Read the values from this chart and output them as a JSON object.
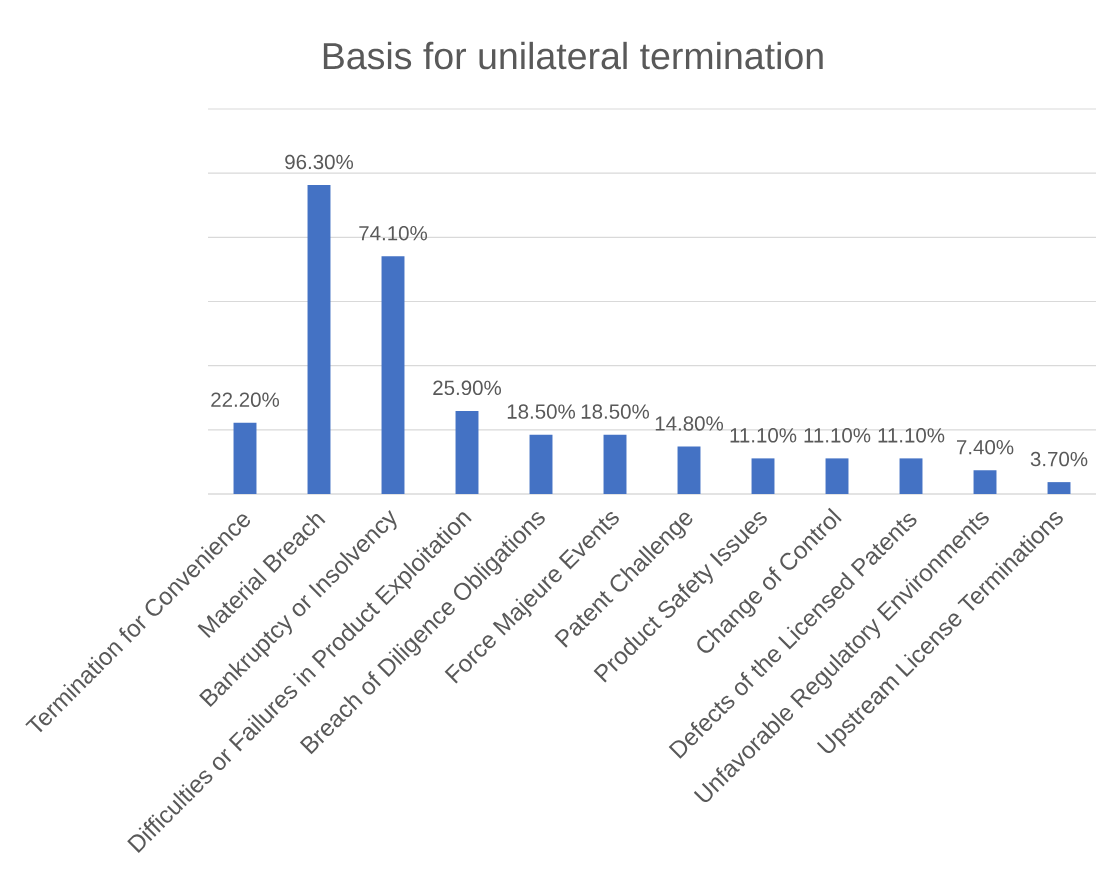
{
  "chart_data": {
    "type": "bar",
    "title": "Basis for unilateral termination",
    "categories": [
      "Termination for Convenience",
      "Material Breach",
      "Bankruptcy or Insolvency",
      "Difficulties or Failures in Product Exploitation",
      "Breach of Diligence Obligations",
      "Force Majeure Events",
      "Patent Challenge",
      "Product Safety Issues",
      "Change of Control",
      "Defects of the Licensed Patents",
      "Unfavorable Regulatory Environments",
      "Upstream License Terminations"
    ],
    "values": [
      22.2,
      96.3,
      74.1,
      25.9,
      18.5,
      18.5,
      14.8,
      11.1,
      11.1,
      11.1,
      7.4,
      3.7
    ],
    "value_labels": [
      "22.20%",
      "96.30%",
      "74.10%",
      "25.90%",
      "18.50%",
      "18.50%",
      "14.80%",
      "11.10%",
      "11.10%",
      "11.10%",
      "7.40%",
      "3.70%"
    ],
    "color": "#4472c4",
    "ylim": [
      0,
      120
    ],
    "yticks": [
      {
        "value": 0,
        "label": null
      },
      {
        "value": 20,
        "label": null
      },
      {
        "value": 40,
        "label": null
      },
      {
        "value": 60,
        "label": null
      },
      {
        "value": 80,
        "label": null
      },
      {
        "value": 100,
        "label": null
      },
      {
        "value": 120,
        "label": null
      }
    ],
    "grid": "y",
    "tick_labels": "x"
  }
}
